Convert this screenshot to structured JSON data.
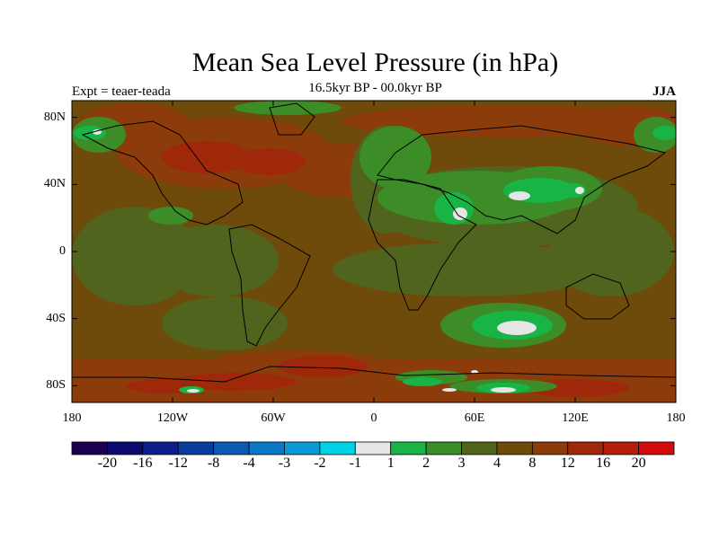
{
  "title": "Mean Sea Level Pressure (in hPa)",
  "subtitle": "16.5kyr BP - 00.0kyr BP",
  "left_label": "Expt = teaer-teada",
  "right_label": "JJA",
  "map": {
    "projection": "cylindrical equidistant",
    "longitude_range": [
      -180,
      180
    ],
    "latitude_range": [
      -90,
      90
    ],
    "y_ticks": [
      {
        "value": 80,
        "label": "80N"
      },
      {
        "value": 40,
        "label": "40N"
      },
      {
        "value": 0,
        "label": "0"
      },
      {
        "value": -40,
        "label": "40S"
      },
      {
        "value": -80,
        "label": "80S"
      }
    ],
    "x_ticks": [
      {
        "value": -180,
        "label": "180"
      },
      {
        "value": -120,
        "label": "120W"
      },
      {
        "value": -60,
        "label": "60W"
      },
      {
        "value": 0,
        "label": "0"
      },
      {
        "value": 60,
        "label": "60E"
      },
      {
        "value": 120,
        "label": "120E"
      },
      {
        "value": 180,
        "label": "180"
      }
    ]
  },
  "colorbar": {
    "colors": [
      "#1a0050",
      "#0a0a6e",
      "#0b1e8c",
      "#0a3ca0",
      "#0a5ab4",
      "#0a78c8",
      "#0a9ad6",
      "#00d2e6",
      "#e6e6e6",
      "#19b446",
      "#3c8c28",
      "#50641e",
      "#6e4b0a",
      "#8c3c0a",
      "#a0280a",
      "#b41e0a",
      "#d20a0a"
    ],
    "labels": [
      "-20",
      "-16",
      "-12",
      "-8",
      "-4",
      "-3",
      "-2",
      "-1",
      "1",
      "2",
      "3",
      "4",
      "8",
      "12",
      "16",
      "20"
    ]
  }
}
